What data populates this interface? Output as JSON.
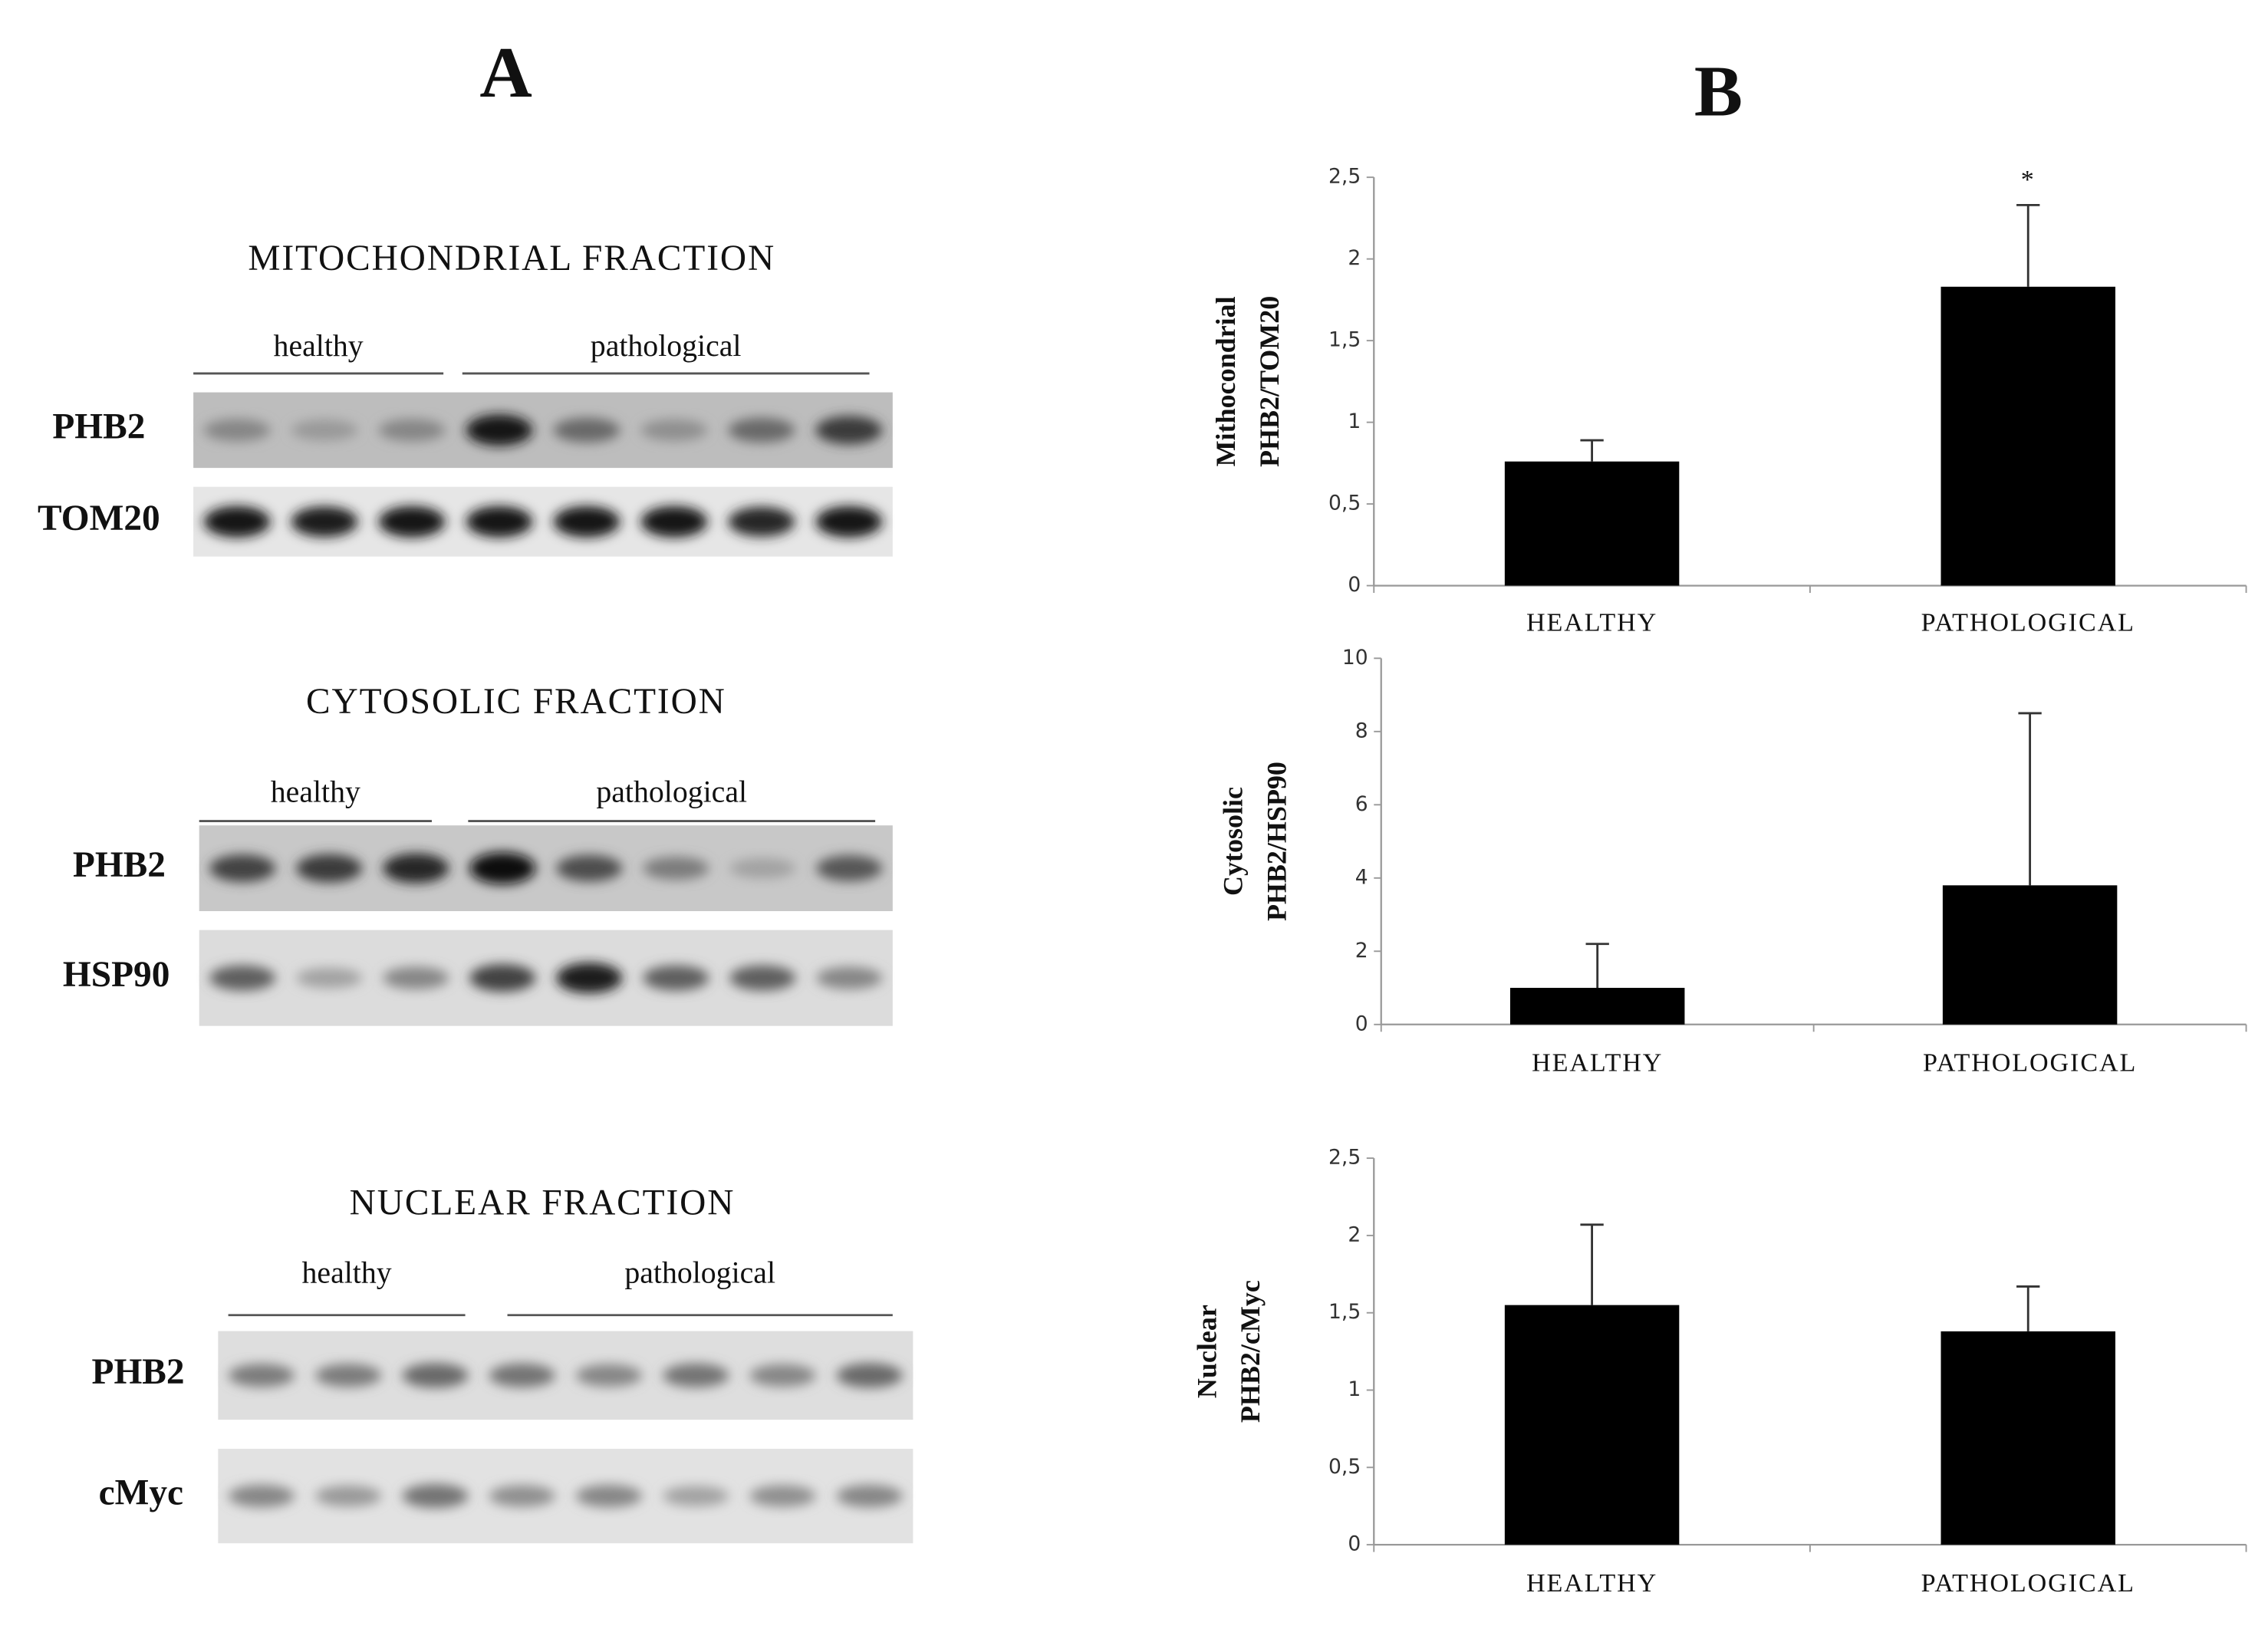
{
  "panel_a": {
    "label": "A",
    "sections": [
      {
        "title": "MITOCHONDRIAL   FRACTION",
        "groups": [
          "healthy",
          "pathological"
        ],
        "rows": [
          "PHB2",
          "TOM20"
        ]
      },
      {
        "title": "CYTOSOLIC  FRACTION",
        "groups": [
          "healthy",
          "pathological"
        ],
        "rows": [
          "PHB2",
          "HSP90"
        ]
      },
      {
        "title": "NUCLEAR  FRACTION",
        "groups": [
          "healthy",
          "pathological"
        ],
        "rows": [
          "PHB2",
          "cMyc"
        ]
      }
    ]
  },
  "panel_b": {
    "label": "B"
  },
  "chart_data": [
    {
      "type": "bar",
      "ylabel": [
        "Mithocondrial",
        "PHB2/TOM20"
      ],
      "categories": [
        "HEALTHY",
        "PATHOLOGICAL"
      ],
      "values": [
        0.76,
        1.83
      ],
      "errors": [
        0.13,
        0.5
      ],
      "annotation": "*",
      "color": "#000000",
      "ylim": [
        0,
        2.5
      ],
      "yticks": [
        0,
        {
          "value": 0.5,
          "label": "0,5"
        },
        1,
        {
          "value": 1.5,
          "label": "1,5"
        },
        2,
        {
          "value": 2.5,
          "label": "2,5"
        }
      ]
    },
    {
      "type": "bar",
      "ylabel": [
        "Cytosolic",
        "PHB2/HSP90"
      ],
      "categories": [
        "HEALTHY",
        "PATHOLOGICAL"
      ],
      "values": [
        1.0,
        3.8
      ],
      "errors": [
        1.2,
        4.7
      ],
      "color": "#000000",
      "ylim": [
        0,
        10
      ],
      "yticks": [
        0,
        2,
        4,
        6,
        8,
        10
      ]
    },
    {
      "type": "bar",
      "ylabel": [
        "Nuclear",
        "PHB2/cMyc"
      ],
      "categories": [
        "HEALTHY",
        "PATHOLOGICAL"
      ],
      "values": [
        1.55,
        1.38
      ],
      "errors": [
        0.52,
        0.29
      ],
      "color": "#000000",
      "ylim": [
        0,
        2.5
      ],
      "yticks": [
        0,
        {
          "value": 0.5,
          "label": "0,5"
        },
        1,
        {
          "value": 1.5,
          "label": "1,5"
        },
        2,
        {
          "value": 2.5,
          "label": "2,5"
        }
      ]
    }
  ]
}
